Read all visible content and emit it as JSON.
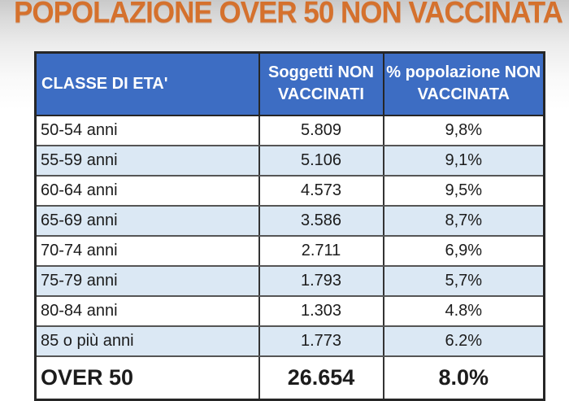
{
  "title": {
    "text": "POPOLAZIONE OVER 50 NON VACCINATA",
    "color": "#d5712d"
  },
  "table": {
    "header": {
      "bg_color": "#3d6dc3",
      "text_color": "#ffffff",
      "columns": [
        {
          "label": "CLASSE DI ETA'"
        },
        {
          "line1": "Soggetti NON",
          "line2": "VACCINATI"
        },
        {
          "line1": "% popolazione NON",
          "line2": "VACCINATA"
        }
      ]
    },
    "rows": [
      {
        "age": "50-54 anni",
        "count": "5.809",
        "pct": "9,8%"
      },
      {
        "age": "55-59 anni",
        "count": "5.106",
        "pct": "9,1%"
      },
      {
        "age": "60-64 anni",
        "count": "4.573",
        "pct": "9,5%"
      },
      {
        "age": "65-69 anni",
        "count": "3.586",
        "pct": "8,7%"
      },
      {
        "age": "70-74 anni",
        "count": "2.711",
        "pct": "6,9%"
      },
      {
        "age": "75-79 anni",
        "count": "1.793",
        "pct": "5,7%"
      },
      {
        "age": "80-84 anni",
        "count": "1.303",
        "pct": "4.8%"
      },
      {
        "age": "85 o più  anni",
        "count": "1.773",
        "pct": "6.2%"
      }
    ],
    "total_row": {
      "age": "OVER 50",
      "count": "26.654",
      "pct": "8.0%"
    },
    "colors": {
      "zebra_row_bg": "#dbe8f4",
      "plain_row_bg": "#ffffff",
      "border": "#333333"
    }
  },
  "chart_data": {
    "type": "table",
    "title": "POPOLAZIONE OVER 50 NON VACCINATA",
    "columns": [
      "CLASSE DI ETA'",
      "Soggetti NON VACCINATI",
      "% popolazione NON VACCINATA"
    ],
    "rows": [
      [
        "50-54 anni",
        5809,
        "9,8%"
      ],
      [
        "55-59 anni",
        5106,
        "9,1%"
      ],
      [
        "60-64 anni",
        4573,
        "9,5%"
      ],
      [
        "65-69 anni",
        3586,
        "8,7%"
      ],
      [
        "70-74 anni",
        2711,
        "6,9%"
      ],
      [
        "75-79 anni",
        1793,
        "5,7%"
      ],
      [
        "80-84 anni",
        1303,
        "4.8%"
      ],
      [
        "85 o più anni",
        1773,
        "6.2%"
      ]
    ],
    "total": [
      "OVER 50",
      26654,
      "8.0%"
    ]
  }
}
